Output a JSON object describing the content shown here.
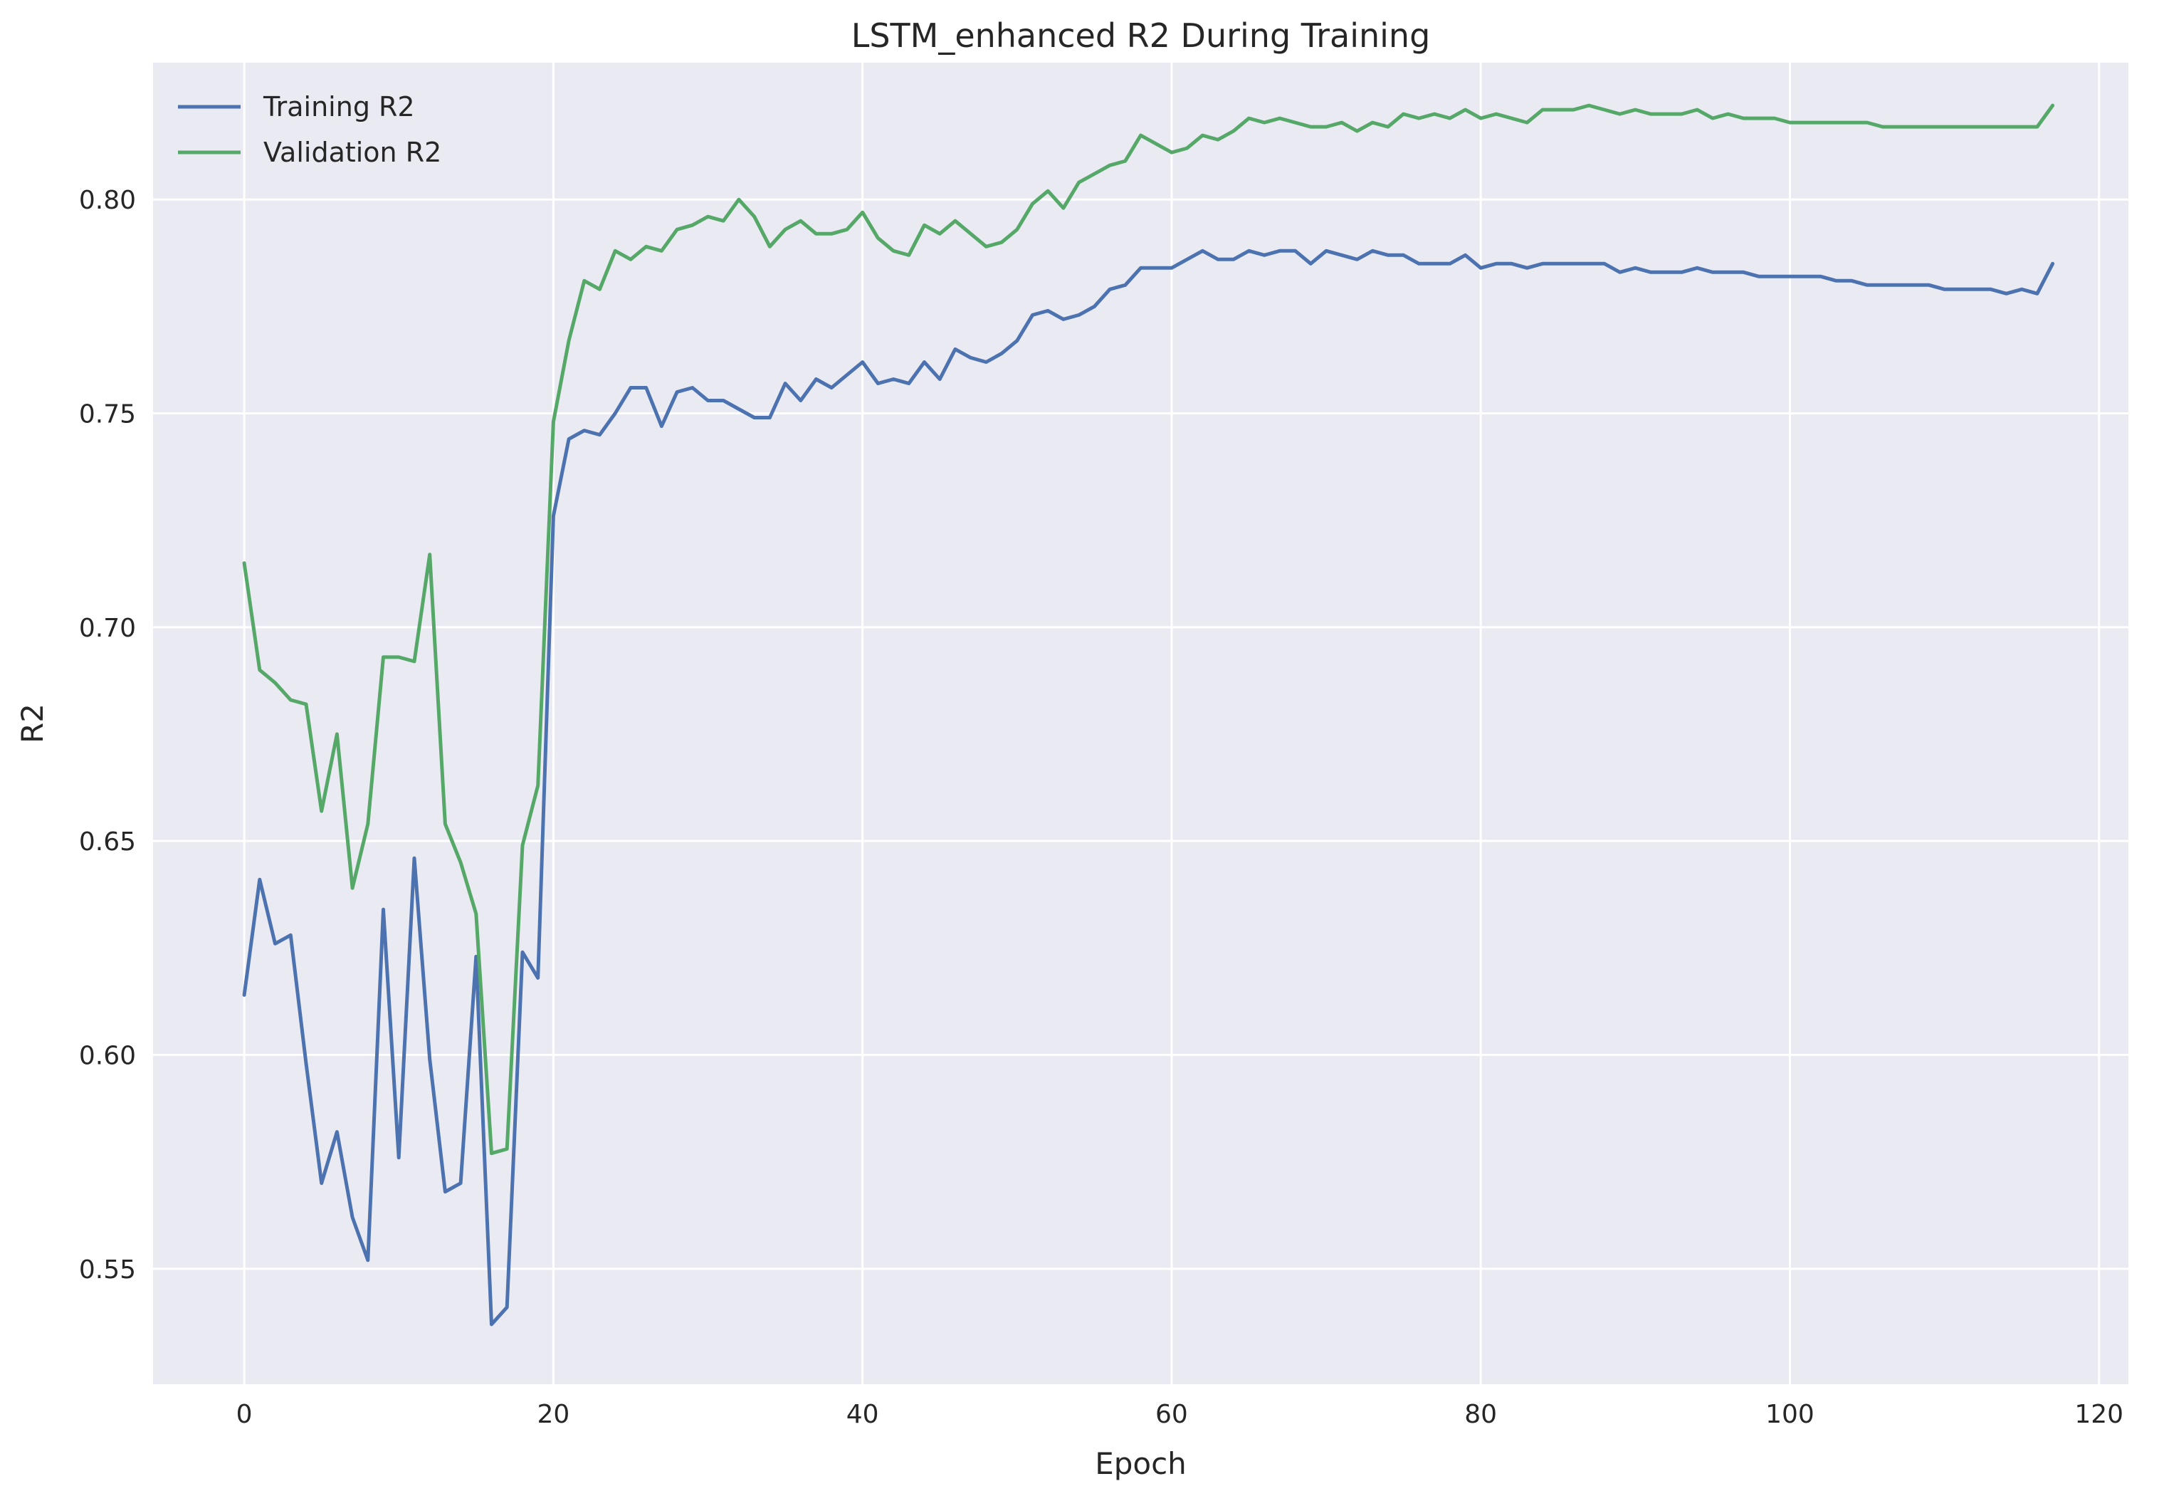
{
  "chart_data": {
    "type": "line",
    "title": "LSTM_enhanced R2 During Training",
    "xlabel": "Epoch",
    "ylabel": "R2",
    "xlim": [
      -5.9,
      121.9
    ],
    "ylim": [
      0.523,
      0.832
    ],
    "x_ticks": [
      0,
      20,
      40,
      60,
      80,
      100,
      120
    ],
    "x_tick_labels": [
      "0",
      "20",
      "40",
      "60",
      "80",
      "100",
      "120"
    ],
    "y_ticks": [
      0.55,
      0.6,
      0.65,
      0.7,
      0.75,
      0.8
    ],
    "y_tick_labels": [
      "0.55",
      "0.60",
      "0.65",
      "0.70",
      "0.75",
      "0.80"
    ],
    "grid": true,
    "legend_position": "top-left",
    "background_color": "#eaeaf2",
    "series": [
      {
        "name": "Training R2",
        "color": "#4c72b0",
        "values": [
          0.614,
          0.641,
          0.626,
          0.628,
          0.598,
          0.57,
          0.582,
          0.562,
          0.552,
          0.634,
          0.576,
          0.646,
          0.599,
          0.568,
          0.57,
          0.623,
          0.537,
          0.541,
          0.624,
          0.618,
          0.726,
          0.744,
          0.746,
          0.745,
          0.75,
          0.756,
          0.756,
          0.747,
          0.755,
          0.756,
          0.753,
          0.753,
          0.751,
          0.749,
          0.749,
          0.757,
          0.753,
          0.758,
          0.756,
          0.759,
          0.762,
          0.757,
          0.758,
          0.757,
          0.762,
          0.758,
          0.765,
          0.763,
          0.762,
          0.764,
          0.767,
          0.773,
          0.774,
          0.772,
          0.773,
          0.775,
          0.779,
          0.78,
          0.784,
          0.784,
          0.784,
          0.786,
          0.788,
          0.786,
          0.786,
          0.788,
          0.787,
          0.788,
          0.788,
          0.785,
          0.788,
          0.787,
          0.786,
          0.788,
          0.787,
          0.787,
          0.785,
          0.785,
          0.785,
          0.787,
          0.784,
          0.785,
          0.785,
          0.784,
          0.785,
          0.785,
          0.785,
          0.785,
          0.785,
          0.783,
          0.784,
          0.783,
          0.783,
          0.783,
          0.784,
          0.783,
          0.783,
          0.783,
          0.782,
          0.782,
          0.782,
          0.782,
          0.782,
          0.781,
          0.781,
          0.78,
          0.78,
          0.78,
          0.78,
          0.78,
          0.779,
          0.779,
          0.779,
          0.779,
          0.778,
          0.779,
          0.778,
          0.785
        ]
      },
      {
        "name": "Validation R2",
        "color": "#55a868",
        "values": [
          0.715,
          0.69,
          0.687,
          0.683,
          0.682,
          0.657,
          0.675,
          0.639,
          0.654,
          0.693,
          0.693,
          0.692,
          0.717,
          0.654,
          0.645,
          0.633,
          0.577,
          0.578,
          0.649,
          0.663,
          0.748,
          0.767,
          0.781,
          0.779,
          0.788,
          0.786,
          0.789,
          0.788,
          0.793,
          0.794,
          0.796,
          0.795,
          0.8,
          0.796,
          0.789,
          0.793,
          0.795,
          0.792,
          0.792,
          0.793,
          0.797,
          0.791,
          0.788,
          0.787,
          0.794,
          0.792,
          0.795,
          0.792,
          0.789,
          0.79,
          0.793,
          0.799,
          0.802,
          0.798,
          0.804,
          0.806,
          0.808,
          0.809,
          0.815,
          0.813,
          0.811,
          0.812,
          0.815,
          0.814,
          0.816,
          0.819,
          0.818,
          0.819,
          0.818,
          0.817,
          0.817,
          0.818,
          0.816,
          0.818,
          0.817,
          0.82,
          0.819,
          0.82,
          0.819,
          0.821,
          0.819,
          0.82,
          0.819,
          0.818,
          0.821,
          0.821,
          0.821,
          0.822,
          0.821,
          0.82,
          0.821,
          0.82,
          0.82,
          0.82,
          0.821,
          0.819,
          0.82,
          0.819,
          0.819,
          0.819,
          0.818,
          0.818,
          0.818,
          0.818,
          0.818,
          0.818,
          0.817,
          0.817,
          0.817,
          0.817,
          0.817,
          0.817,
          0.817,
          0.817,
          0.817,
          0.817,
          0.817,
          0.822
        ]
      }
    ]
  }
}
